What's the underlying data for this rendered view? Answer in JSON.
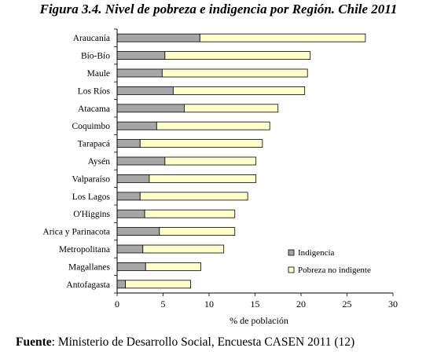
{
  "figure_title": "Figura 3.4. Nivel de pobreza e indigencia por Región. Chile 2011",
  "source": {
    "label": "Fuente",
    "text": ": Ministerio de Desarrollo Social, Encuesta CASEN 2011 (12)"
  },
  "chart_data": {
    "type": "bar",
    "orientation": "horizontal",
    "stacked": true,
    "title": "",
    "xlabel": "% de población",
    "ylabel": "",
    "xlim": [
      0,
      30
    ],
    "x_ticks": [
      0,
      5,
      10,
      15,
      20,
      25,
      30
    ],
    "grid": false,
    "legend_position": "bottom-right",
    "categories": [
      "Araucanía",
      "Bío-Bío",
      "Maule",
      "Los Ríos",
      "Atacama",
      "Coquimbo",
      "Tarapacá",
      "Aysén",
      "Valparaíso",
      "Los Lagos",
      "O'Higgins",
      "Arica y Parinacota",
      "Metropolitana",
      "Magallanes",
      "Antofagasta"
    ],
    "series": [
      {
        "name": "Indigencia",
        "color": "#a6a6a6",
        "values": [
          9.0,
          5.2,
          4.9,
          6.1,
          7.3,
          4.3,
          2.5,
          5.2,
          3.5,
          2.5,
          3.0,
          4.6,
          2.8,
          3.1,
          0.9
        ]
      },
      {
        "name": "Pobreza no indigente",
        "color": "#ffffcc",
        "values": [
          18.0,
          15.8,
          15.8,
          14.3,
          10.2,
          12.3,
          13.3,
          9.9,
          11.6,
          11.7,
          9.8,
          8.2,
          8.8,
          6.0,
          7.1
        ]
      }
    ]
  }
}
